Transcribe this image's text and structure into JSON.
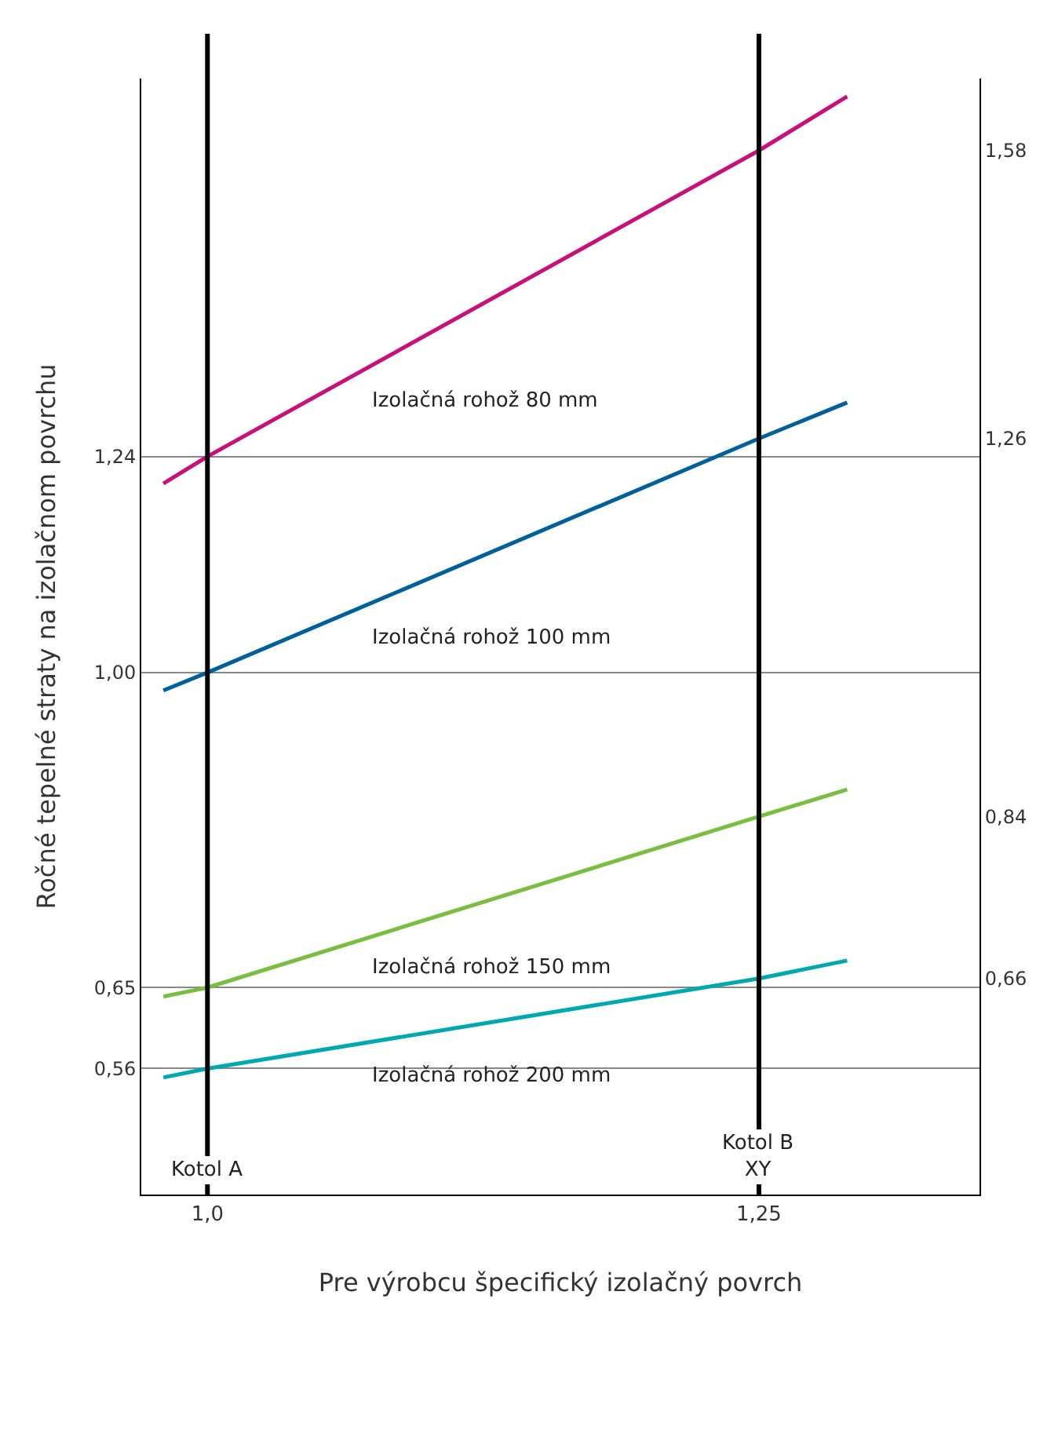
{
  "chart_data": {
    "type": "line",
    "xlabel": "Pre výrobcu špecifický izolačný povrch",
    "ylabel": "Ročné tepelné straty na izolačnom povrchu",
    "x": [
      0.98,
      1.0,
      1.25,
      1.29
    ],
    "series": [
      {
        "name": "Izolačná rohož 80 mm",
        "color": "#c8107a",
        "values": [
          1.21,
          1.24,
          1.58,
          1.64
        ]
      },
      {
        "name": "Izolačná rohož 100 mm",
        "color": "#00609c",
        "values": [
          0.98,
          1.0,
          1.26,
          1.3
        ]
      },
      {
        "name": "Izolačná rohož 150 mm",
        "color": "#78be41",
        "values": [
          0.64,
          0.65,
          0.84,
          0.87
        ]
      },
      {
        "name": "Izolačná rohož 200 mm",
        "color": "#00a8b0",
        "values": [
          0.55,
          0.56,
          0.66,
          0.68
        ]
      }
    ],
    "xlim": [
      0.97,
      1.35
    ],
    "xticks": [
      {
        "value": 1.0,
        "label": "1,0"
      },
      {
        "value": 1.25,
        "label": "1,25"
      }
    ],
    "ylim": [
      0.42,
      1.66
    ],
    "yticks": [
      {
        "value": 0.56,
        "label": "0,56"
      },
      {
        "value": 0.65,
        "label": "0,65"
      },
      {
        "value": 1.0,
        "label": "1,00"
      },
      {
        "value": 1.24,
        "label": "1,24"
      }
    ],
    "y2lim": [
      0.42,
      1.66
    ],
    "y2ticks": [
      {
        "value": 0.66,
        "label": "0,66"
      },
      {
        "value": 0.84,
        "label": "0,84"
      },
      {
        "value": 1.26,
        "label": "1,26"
      },
      {
        "value": 1.58,
        "label": "1,58"
      }
    ],
    "ref_lines": [
      {
        "axis": "x",
        "value": 1.0,
        "label": "Kotol A",
        "color": "#000000"
      },
      {
        "axis": "x",
        "value": 1.25,
        "label": "Kotol B\nXY",
        "color": "#000000"
      }
    ],
    "grid": true,
    "legend": false,
    "marker": "none",
    "line_style": "solid"
  }
}
